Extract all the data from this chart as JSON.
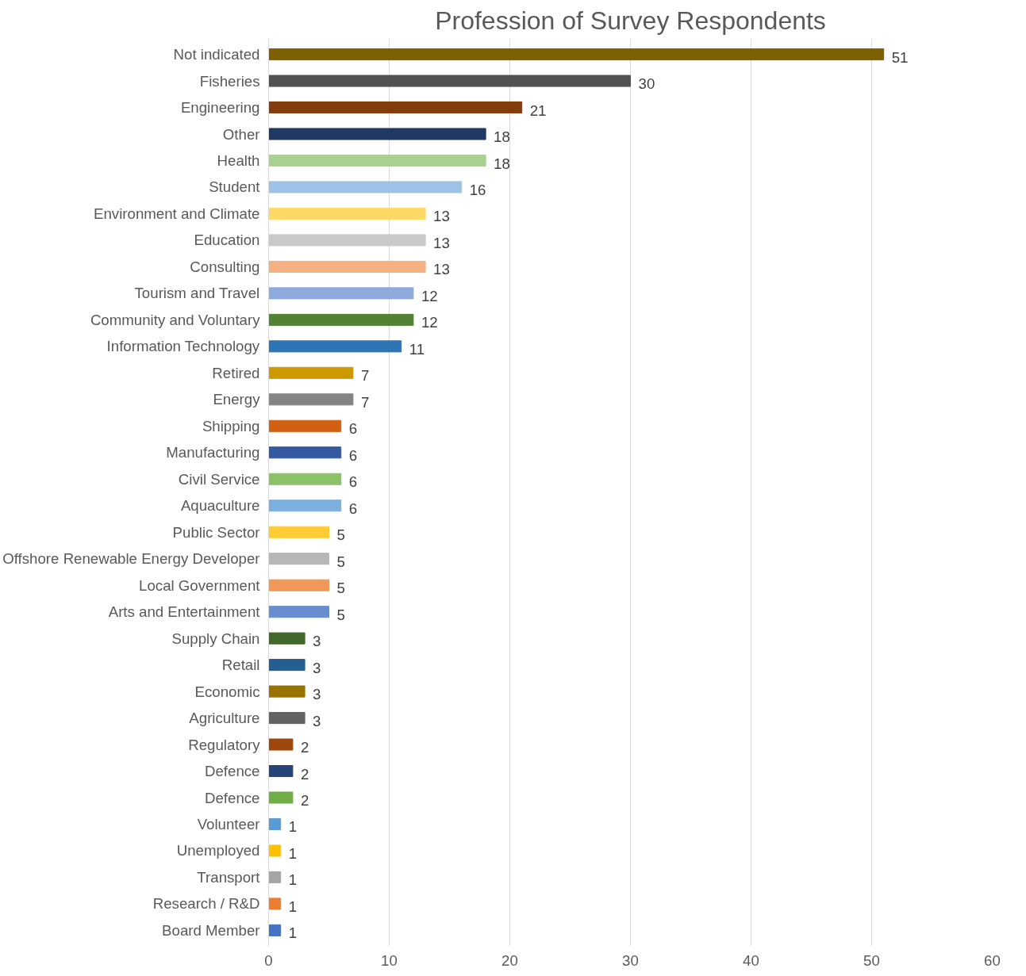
{
  "chart_data": {
    "type": "bar",
    "orientation": "horizontal",
    "title": "Profession of Survey Respondents",
    "categories": [
      "Not indicated",
      "Fisheries",
      "Engineering",
      "Other",
      "Health",
      "Student",
      "Environment and Climate",
      "Education",
      "Consulting",
      "Tourism and Travel",
      "Community and Voluntary",
      "Information Technology",
      "Retired",
      "Energy",
      "Shipping",
      "Manufacturing",
      "Civil Service",
      "Aquaculture",
      "Public Sector",
      "Offshore Renewable Energy Developer",
      "Local Government",
      "Arts and Entertainment",
      "Supply Chain",
      "Retail",
      "Economic",
      "Agriculture",
      "Regulatory",
      "Defence",
      "Defence",
      "Volunteer",
      "Unemployed",
      "Transport",
      "Research / R&D",
      "Board Member"
    ],
    "values": [
      51,
      30,
      21,
      18,
      18,
      16,
      13,
      13,
      13,
      12,
      12,
      11,
      7,
      7,
      6,
      6,
      6,
      6,
      5,
      5,
      5,
      5,
      3,
      3,
      3,
      3,
      2,
      2,
      2,
      1,
      1,
      1,
      1,
      1
    ],
    "colors": [
      "#7f6000",
      "#525252",
      "#843c0c",
      "#203864",
      "#a9d18e",
      "#9dc3e6",
      "#ffd966",
      "#c9c9c9",
      "#f4b183",
      "#8faadc",
      "#548235",
      "#2e75b6",
      "#cc9a00",
      "#848484",
      "#d26012",
      "#335aa1",
      "#8cc168",
      "#7cafdd",
      "#ffcd33",
      "#b7b7b7",
      "#f1975a",
      "#698ed0",
      "#43682b",
      "#255e91",
      "#997300",
      "#636363",
      "#9e480e",
      "#264478",
      "#70ad47",
      "#5b9bd5",
      "#ffc000",
      "#a5a5a5",
      "#ed7d31",
      "#4472c4"
    ],
    "xlim": [
      0,
      60
    ],
    "xticks": [
      0,
      10,
      20,
      30,
      40,
      50,
      60
    ],
    "grid": "x",
    "data_labels": true
  }
}
